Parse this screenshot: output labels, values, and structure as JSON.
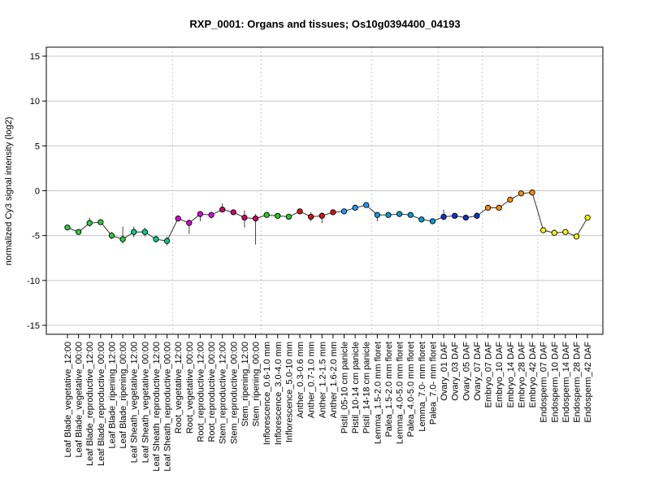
{
  "chart_data": {
    "type": "line",
    "title": "RXP_0001: Organs and tissues; Os10g0394400_04193",
    "xlabel": "",
    "ylabel": "normalized Cy3 signal intensity (log2)",
    "ylim": [
      -16,
      16
    ],
    "yticks": [
      -15,
      -10,
      -5,
      0,
      5,
      10,
      15
    ],
    "grid": true,
    "categories": [
      "Leaf Blade_vegetative_12:00",
      "Leaf Blade_vegetative_00:00",
      "Leaf Blade_reproductive_12:00",
      "Leaf Blade_reproductive_00:00",
      "Leaf Blade_ripening_12:00",
      "Leaf Blade_ripening_00:00",
      "Leaf Sheath_vegetative_12:00",
      "Leaf Sheath_vegetative_00:00",
      "Leaf Sheath_reproductive_12:00",
      "Leaf Sheath_reproductive_00:00",
      "Root_vegetative_12:00",
      "Root_vegetative_00:00",
      "Root_reproductive_12:00",
      "Root_reproductive_00:00",
      "Stem_reproductive_12:00",
      "Stem_reproductive_00:00",
      "Stem_ripening_12:00",
      "Stem_ripening_00:00",
      "Inflorescence_0.6-1.0 mm",
      "Inflorescence_3.0-4.0 mm",
      "Inflorescence_5.0-10 mm",
      "Anther_0.3-0.6 mm",
      "Anther_0.7-1.0 mm",
      "Anther_1.2-1.5 mm",
      "Anther_1.6-2.0 mm",
      "Pistil_05-10 cm panicle",
      "Pistil_10-14 cm panicle",
      "Pistil_14-18 cm panicle",
      "Lemma_1.5-2.0 mm floret",
      "Palea_1.5-2.0 mm floret",
      "Lemma_4.0-5.0 mm floret",
      "Palea_4.0-5.0 mm floret",
      "Lemma_7.0- mm floret",
      "Palea_7.0- mm floret",
      "Ovary_01 DAF",
      "Ovary_03 DAF",
      "Ovary_05 DAF",
      "Ovary_07 DAF",
      "Embryo_07 DAF",
      "Embryo_10 DAF",
      "Embryo_14 DAF",
      "Embryo_28 DAF",
      "Embryo_42 DAF",
      "Endosperm_07 DAF",
      "Endosperm_10 DAF",
      "Endosperm_14 DAF",
      "Endosperm_28 DAF",
      "Endosperm_42 DAF"
    ],
    "series": [
      {
        "values": [
          -4.1,
          -4.6,
          -3.6,
          -3.5,
          -5.0,
          -5.4,
          -4.6,
          -4.6,
          -5.4,
          -5.6,
          -3.1,
          -3.6,
          -2.6,
          -2.7,
          -2.1,
          -2.4,
          -3.0,
          -3.1,
          -2.7,
          -2.8,
          -2.9,
          -2.3,
          -2.9,
          -2.8,
          -2.4,
          -2.3,
          -1.9,
          -1.6,
          -2.7,
          -2.7,
          -2.6,
          -2.7,
          -3.2,
          -3.4,
          -2.9,
          -2.8,
          -3.0,
          -2.8,
          -1.9,
          -1.9,
          -1.0,
          -0.3,
          -0.2,
          -4.4,
          -4.7,
          -4.6,
          -5.1,
          -3.0
        ],
        "err_low": [
          -4.4,
          -4.9,
          -4.0,
          -3.8,
          -5.4,
          -5.9,
          -5.2,
          -5.1,
          -5.8,
          -6.1,
          -3.3,
          -4.8,
          -3.4,
          -3.1,
          -2.4,
          -2.7,
          -4.1,
          -6.0,
          -2.9,
          -3.0,
          -3.1,
          -2.5,
          -3.4,
          -3.6,
          -2.7,
          -2.6,
          -2.1,
          -1.8,
          -3.4,
          -3.0,
          -2.9,
          -2.9,
          -3.5,
          -3.6,
          -3.3,
          -3.0,
          -3.2,
          -3.0,
          -2.1,
          -2.2,
          -1.3,
          -0.5,
          -0.4,
          -4.7,
          -5.0,
          -4.8,
          -5.4,
          -3.3
        ],
        "err_high": [
          -3.8,
          -4.3,
          -3.0,
          -3.2,
          -4.6,
          -4.0,
          -4.0,
          -4.1,
          -5.0,
          -5.1,
          -2.9,
          -3.2,
          -2.4,
          -2.4,
          -1.4,
          -2.1,
          -2.2,
          -2.6,
          -2.5,
          -2.6,
          -2.7,
          -2.1,
          -2.4,
          -2.4,
          -2.1,
          -2.0,
          -1.7,
          -1.3,
          -2.4,
          -2.4,
          -2.3,
          -2.4,
          -2.9,
          -3.1,
          -2.1,
          -2.6,
          -2.7,
          -2.4,
          -1.7,
          -1.6,
          -0.8,
          -0.1,
          0.1,
          -4.1,
          -4.3,
          -4.4,
          -4.8,
          -2.8
        ]
      }
    ],
    "colors": [
      "#2ecc40",
      "#2ecc40",
      "#2ecc40",
      "#2ecc40",
      "#2ecc40",
      "#2ecc40",
      "#00d08a",
      "#00d08a",
      "#00d08a",
      "#00d08a",
      "#dd00dd",
      "#dd00dd",
      "#dd00dd",
      "#dd00dd",
      "#d4006a",
      "#d4006a",
      "#d4006a",
      "#d4006a",
      "#22cc22",
      "#22cc22",
      "#22cc22",
      "#dd1111",
      "#dd1111",
      "#dd1111",
      "#dd1111",
      "#2299ff",
      "#2299ff",
      "#2299ff",
      "#00a0d0",
      "#00a0d0",
      "#00a0d0",
      "#00a0d0",
      "#00a0d0",
      "#00a0d0",
      "#1133cc",
      "#1133cc",
      "#1133cc",
      "#1133cc",
      "#ff8c00",
      "#ff8c00",
      "#ff8c00",
      "#ff8c00",
      "#ff8c00",
      "#ffff00",
      "#ffff00",
      "#ffff00",
      "#ffff00",
      "#ffff00"
    ],
    "vgrid_after_indices": [
      9,
      17,
      27,
      33,
      37,
      42
    ]
  }
}
